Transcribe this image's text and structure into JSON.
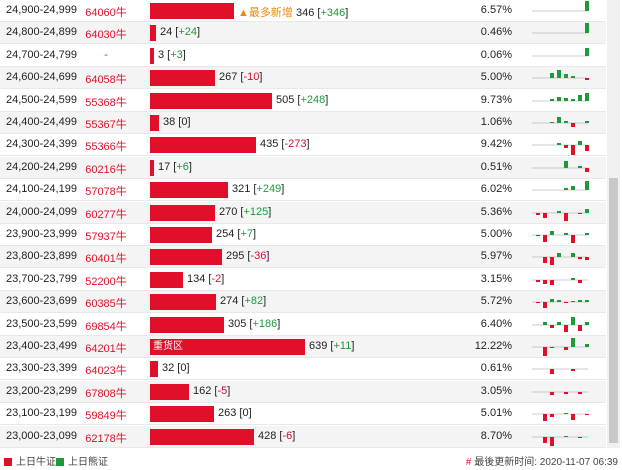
{
  "colors": {
    "bull": "#e0102a",
    "bear": "#1e9a3a",
    "alt_row": "#f4f4f4"
  },
  "bar_scale_max": 639,
  "rows": [
    {
      "range": "24,900-24,999",
      "code": "64060牛",
      "count": "346",
      "change": "+346",
      "pct": "6.57%",
      "tag": "▲最多新增",
      "spark": [
        0,
        0,
        0,
        0,
        0,
        0,
        0,
        18
      ]
    },
    {
      "range": "24,800-24,899",
      "code": "64030牛",
      "count": "24",
      "change": "+24",
      "pct": "0.46%",
      "tag": "",
      "spark": [
        0,
        0,
        0,
        0,
        0,
        0,
        0,
        10
      ]
    },
    {
      "range": "24,700-24,799",
      "code": "-",
      "count": "3",
      "change": "+3",
      "pct": "0.06%",
      "tag": "",
      "spark": [
        0,
        0,
        0,
        0,
        0,
        0,
        0,
        8
      ]
    },
    {
      "range": "24,600-24,699",
      "code": "64058牛",
      "count": "267",
      "change": "-10",
      "pct": "5.00%",
      "tag": "",
      "spark": [
        0,
        0,
        5,
        8,
        4,
        2,
        0,
        -2
      ]
    },
    {
      "range": "24,500-24,599",
      "code": "55368牛",
      "count": "505",
      "change": "+248",
      "pct": "9.73%",
      "tag": "",
      "spark": [
        0,
        0,
        2,
        4,
        3,
        2,
        6,
        8
      ]
    },
    {
      "range": "24,400-24,499",
      "code": "55367牛",
      "count": "38",
      "change": "0",
      "pct": "1.06%",
      "tag": "",
      "spark": [
        0,
        0,
        1,
        6,
        2,
        -4,
        0,
        2
      ]
    },
    {
      "range": "24,300-24,399",
      "code": "55366牛",
      "count": "435",
      "change": "-273",
      "pct": "9.42%",
      "tag": "",
      "spark": [
        0,
        0,
        0,
        2,
        -3,
        -10,
        4,
        -6
      ]
    },
    {
      "range": "24,200-24,299",
      "code": "60216牛",
      "count": "17",
      "change": "+6",
      "pct": "0.51%",
      "tag": "",
      "spark": [
        0,
        0,
        0,
        0,
        7,
        0,
        2,
        -4
      ]
    },
    {
      "range": "24,100-24,199",
      "code": "57078牛",
      "count": "321",
      "change": "+249",
      "pct": "6.02%",
      "tag": "",
      "spark": [
        0,
        0,
        0,
        0,
        2,
        4,
        0,
        9
      ]
    },
    {
      "range": "24,000-24,099",
      "code": "60277牛",
      "count": "270",
      "change": "+125",
      "pct": "5.36%",
      "tag": "",
      "spark": [
        -2,
        -5,
        0,
        2,
        -8,
        0,
        -1,
        4
      ]
    },
    {
      "range": "23,900-23,999",
      "code": "57937牛",
      "count": "254",
      "change": "+7",
      "pct": "5.00%",
      "tag": "",
      "spark": [
        -1,
        -7,
        4,
        0,
        2,
        -8,
        0,
        2
      ]
    },
    {
      "range": "23,800-23,899",
      "code": "60401牛",
      "count": "295",
      "change": "-36",
      "pct": "5.97%",
      "tag": "",
      "spark": [
        0,
        -6,
        -8,
        4,
        0,
        4,
        -2,
        -3
      ]
    },
    {
      "range": "23,700-23,799",
      "code": "52200牛",
      "count": "134",
      "change": "-2",
      "pct": "3.15%",
      "tag": "",
      "spark": [
        -2,
        -4,
        -5,
        0,
        0,
        2,
        -3,
        0
      ]
    },
    {
      "range": "23,600-23,699",
      "code": "60385牛",
      "count": "274",
      "change": "+82",
      "pct": "5.72%",
      "tag": "",
      "spark": [
        -1,
        -6,
        3,
        2,
        -1,
        1,
        2,
        2
      ]
    },
    {
      "range": "23,500-23,599",
      "code": "69854牛",
      "count": "305",
      "change": "+186",
      "pct": "6.40%",
      "tag": "",
      "spark": [
        0,
        3,
        -3,
        3,
        -7,
        8,
        -6,
        3
      ]
    },
    {
      "range": "23,400-23,499",
      "code": "64201牛",
      "count": "639",
      "change": "+11",
      "pct": "12.22%",
      "tag": "重货区",
      "spark": [
        0,
        -9,
        -1,
        0,
        -3,
        9,
        0,
        3
      ]
    },
    {
      "range": "23,300-23,399",
      "code": "64023牛",
      "count": "32",
      "change": "0",
      "pct": "0.61%",
      "tag": "",
      "spark": [
        0,
        0,
        -5,
        0,
        0,
        -2,
        0,
        0
      ]
    },
    {
      "range": "23,200-23,299",
      "code": "67808牛",
      "count": "162",
      "change": "-5",
      "pct": "3.05%",
      "tag": "",
      "spark": [
        0,
        0,
        -3,
        0,
        -2,
        0,
        -2,
        0
      ]
    },
    {
      "range": "23,100-23,199",
      "code": "59849牛",
      "count": "263",
      "change": "0",
      "pct": "5.01%",
      "tag": "",
      "spark": [
        0,
        -7,
        -3,
        0,
        1,
        -6,
        0,
        -1
      ]
    },
    {
      "range": "23,000-23,099",
      "code": "62178牛",
      "count": "428",
      "change": "-6",
      "pct": "8.70%",
      "tag": "",
      "spark": [
        0,
        -6,
        -9,
        0,
        1,
        0,
        -1,
        0
      ]
    }
  ],
  "legend": {
    "bull_label": "上日牛证",
    "bear_label": "上日熊证",
    "update_hash": "#",
    "update_text": "最後更新时间: 2020-11-07 06:39"
  }
}
